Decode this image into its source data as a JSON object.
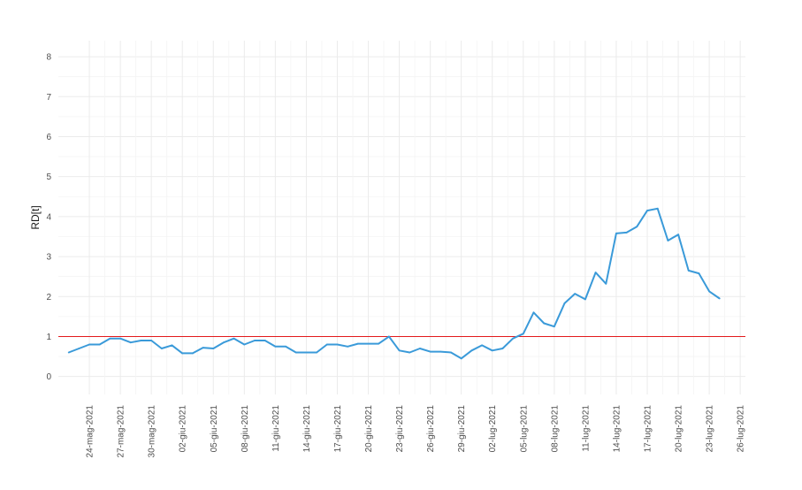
{
  "chart_data": {
    "type": "line",
    "ylabel": "RD[t]",
    "xlabel": "",
    "ylim": [
      -0.45,
      8.4
    ],
    "y_ticks": [
      0,
      1,
      2,
      3,
      4,
      5,
      6,
      7,
      8
    ],
    "x_tick_labels": [
      "24-mag-2021",
      "27-mag-2021",
      "30-mag-2021",
      "02-giu-2021",
      "05-giu-2021",
      "08-giu-2021",
      "11-giu-2021",
      "14-giu-2021",
      "17-giu-2021",
      "20-giu-2021",
      "23-giu-2021",
      "26-giu-2021",
      "29-giu-2021",
      "02-lug-2021",
      "05-lug-2021",
      "08-lug-2021",
      "11-lug-2021",
      "14-lug-2021",
      "17-lug-2021",
      "20-lug-2021",
      "23-lug-2021",
      "26-lug-2021"
    ],
    "x_start_date": "2021-05-22",
    "grid": true,
    "reference_line": {
      "y": 1,
      "color": "#e31a1c"
    },
    "series": [
      {
        "color": "#3a9ad9",
        "x": [
          "2021-05-22",
          "2021-05-23",
          "2021-05-24",
          "2021-05-25",
          "2021-05-26",
          "2021-05-27",
          "2021-05-28",
          "2021-05-29",
          "2021-05-30",
          "2021-05-31",
          "2021-06-01",
          "2021-06-02",
          "2021-06-03",
          "2021-06-04",
          "2021-06-05",
          "2021-06-06",
          "2021-06-07",
          "2021-06-08",
          "2021-06-09",
          "2021-06-10",
          "2021-06-11",
          "2021-06-12",
          "2021-06-13",
          "2021-06-14",
          "2021-06-15",
          "2021-06-16",
          "2021-06-17",
          "2021-06-18",
          "2021-06-19",
          "2021-06-20",
          "2021-06-21",
          "2021-06-22",
          "2021-06-23",
          "2021-06-24",
          "2021-06-25",
          "2021-06-26",
          "2021-06-27",
          "2021-06-28",
          "2021-06-29",
          "2021-06-30",
          "2021-07-01",
          "2021-07-02",
          "2021-07-03",
          "2021-07-04",
          "2021-07-05",
          "2021-07-06",
          "2021-07-07",
          "2021-07-08",
          "2021-07-09",
          "2021-07-10",
          "2021-07-11",
          "2021-07-12",
          "2021-07-13",
          "2021-07-14",
          "2021-07-15",
          "2021-07-16",
          "2021-07-17",
          "2021-07-18",
          "2021-07-19",
          "2021-07-20",
          "2021-07-21",
          "2021-07-22",
          "2021-07-23",
          "2021-07-24"
        ],
        "values": [
          0.6,
          0.7,
          0.8,
          0.8,
          0.95,
          0.95,
          0.85,
          0.9,
          0.9,
          0.7,
          0.78,
          0.58,
          0.58,
          0.72,
          0.7,
          0.85,
          0.95,
          0.8,
          0.9,
          0.9,
          0.75,
          0.75,
          0.6,
          0.6,
          0.6,
          0.8,
          0.8,
          0.75,
          0.82,
          0.82,
          0.82,
          1.0,
          0.65,
          0.6,
          0.7,
          0.62,
          0.62,
          0.6,
          0.45,
          0.65,
          0.78,
          0.65,
          0.7,
          0.95,
          1.07,
          1.6,
          1.33,
          1.25,
          1.83,
          2.07,
          1.93,
          2.6,
          2.32,
          3.58,
          3.6,
          3.75,
          4.15,
          4.2,
          3.4,
          3.55,
          2.65,
          2.58,
          2.13,
          1.95
        ]
      }
    ]
  }
}
